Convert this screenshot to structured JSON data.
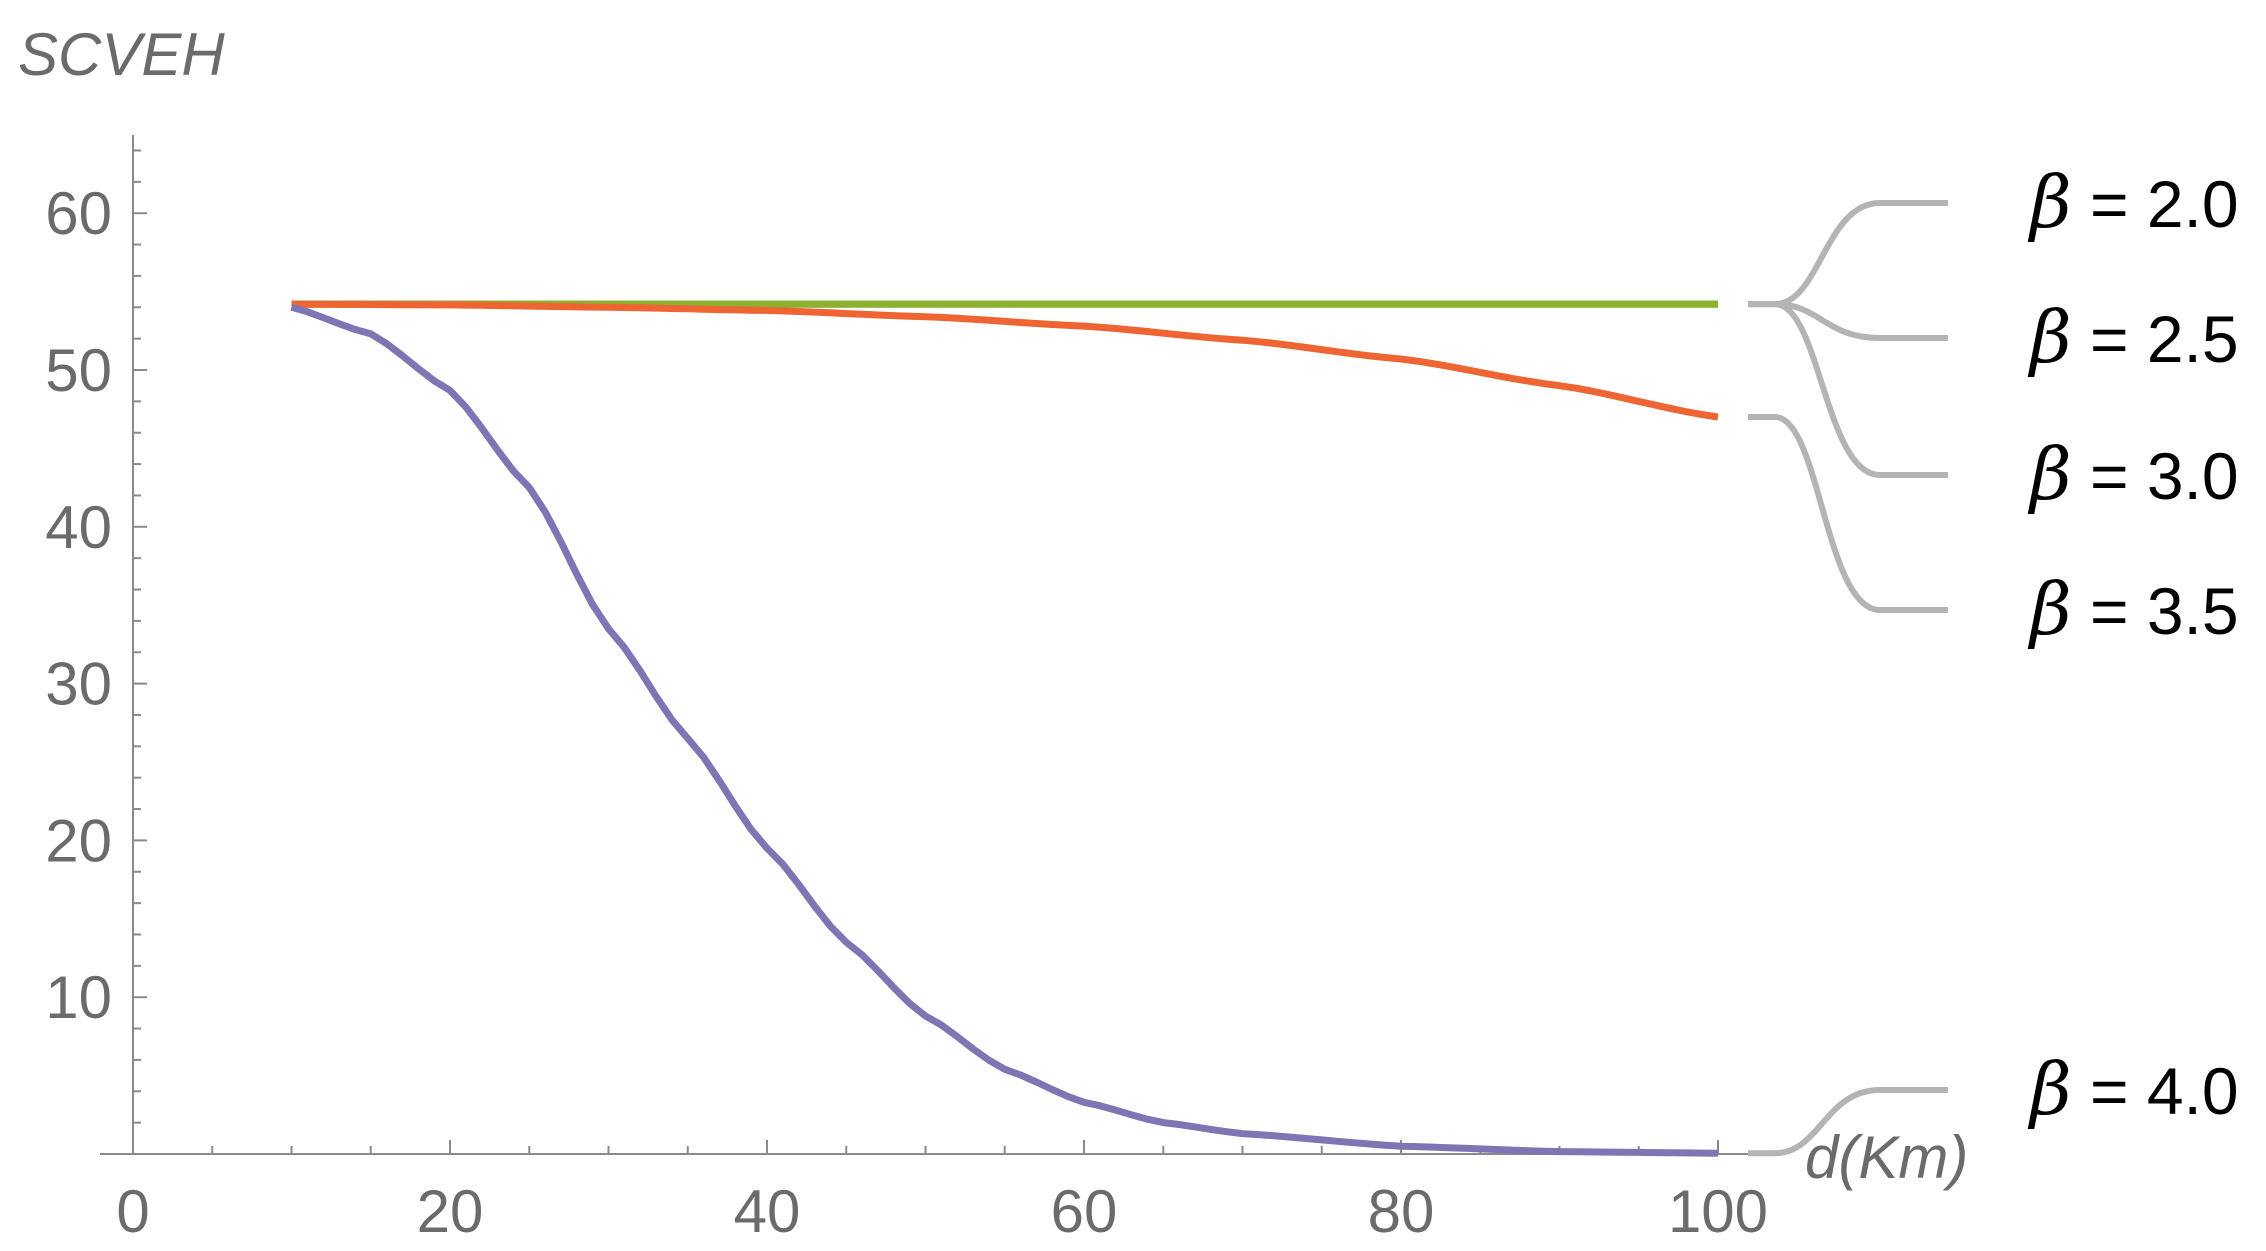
{
  "chart_data": {
    "type": "line",
    "title": "",
    "ylabel": "SCVEH",
    "xlabel_var": "d",
    "xlabel_unit": "(Km)",
    "xlim": [
      0,
      100
    ],
    "ylim": [
      0,
      63
    ],
    "xticks": [
      0,
      20,
      40,
      60,
      80,
      100
    ],
    "yticks": [
      10,
      20,
      30,
      40,
      50,
      60
    ],
    "grid": false,
    "legend_placement": "right",
    "series": [
      {
        "name": "β = 2.0",
        "beta": "2.0",
        "color": "#8BB12E",
        "formula": "flat",
        "value": 54.2
      },
      {
        "name": "β = 2.5",
        "beta": "2.5",
        "color": "#8BB12E",
        "formula": "flat",
        "value": 54.2
      },
      {
        "name": "β = 3.0",
        "beta": "3.0",
        "color": "#8BB12E",
        "formula": "flat",
        "value": 54.2
      },
      {
        "name": "β = 3.5",
        "beta": "3.5",
        "color": "#EE6432",
        "formula": "decline",
        "x": [
          10,
          20,
          30,
          40,
          50,
          60,
          70,
          80,
          90,
          100
        ],
        "values": [
          54.2,
          54.15,
          54.0,
          53.8,
          53.4,
          52.8,
          51.9,
          50.7,
          49.0,
          47.0
        ]
      },
      {
        "name": "β = 4.0",
        "beta": "4.0",
        "color": "#7F74B4",
        "formula": "sigmoid",
        "x": [
          10,
          15,
          20,
          25,
          30,
          35,
          40,
          45,
          50,
          55,
          60,
          65,
          70,
          80,
          90,
          100
        ],
        "values": [
          54.0,
          52.3,
          48.7,
          42.5,
          33.5,
          26.5,
          19.5,
          13.5,
          8.8,
          5.4,
          3.3,
          2.0,
          1.3,
          0.5,
          0.15,
          0.05
        ]
      }
    ]
  }
}
